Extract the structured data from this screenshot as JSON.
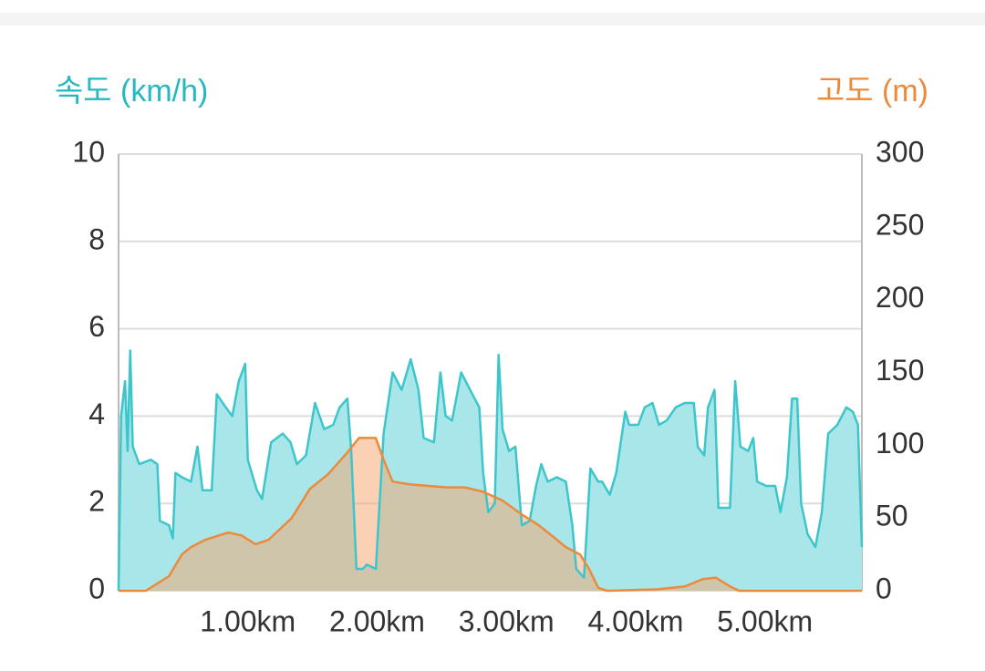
{
  "chart_data": {
    "type": "area",
    "ylabel": "속도 (km/h)",
    "y2label": "고도 (m)",
    "ylabel_color": "#26b8c0",
    "y2label_color": "#ec8a3c",
    "xlim": [
      0,
      5.75
    ],
    "xticks": [
      {
        "value": 1,
        "label": "1.00km"
      },
      {
        "value": 2,
        "label": "2.00km"
      },
      {
        "value": 3,
        "label": "3.00km"
      },
      {
        "value": 4,
        "label": "4.00km"
      },
      {
        "value": 5,
        "label": "5.00km"
      }
    ],
    "ylim": [
      0,
      10
    ],
    "yticks": [
      0,
      2,
      4,
      6,
      8,
      10
    ],
    "y2lim": [
      0,
      300
    ],
    "y2ticks": [
      0,
      50,
      100,
      150,
      200,
      250,
      300
    ],
    "grid": true,
    "series": [
      {
        "color": "#3cc6cc",
        "fill": "#a9e6ea",
        "axis": "y",
        "x": [
          0,
          0.02,
          0.05,
          0.07,
          0.09,
          0.11,
          0.16,
          0.25,
          0.3,
          0.32,
          0.39,
          0.42,
          0.44,
          0.49,
          0.56,
          0.61,
          0.65,
          0.72,
          0.76,
          0.83,
          0.88,
          0.93,
          0.98,
          1.0,
          1.07,
          1.11,
          1.18,
          1.27,
          1.33,
          1.38,
          1.45,
          1.52,
          1.59,
          1.66,
          1.71,
          1.77,
          1.8,
          1.84,
          1.89,
          1.92,
          1.99,
          2.05,
          2.12,
          2.19,
          2.26,
          2.32,
          2.36,
          2.44,
          2.49,
          2.53,
          2.58,
          2.65,
          2.72,
          2.79,
          2.82,
          2.86,
          2.91,
          2.94,
          2.97,
          3.02,
          3.07,
          3.12,
          3.18,
          3.23,
          3.27,
          3.32,
          3.39,
          3.46,
          3.51,
          3.54,
          3.6,
          3.65,
          3.71,
          3.74,
          3.8,
          3.85,
          3.92,
          3.95,
          4.02,
          4.07,
          4.13,
          4.18,
          4.24,
          4.31,
          4.38,
          4.45,
          4.48,
          4.53,
          4.56,
          4.61,
          4.64,
          4.7,
          4.73,
          4.77,
          4.81,
          4.87,
          4.91,
          4.94,
          5.01,
          5.08,
          5.12,
          5.17,
          5.21,
          5.25,
          5.28,
          5.33,
          5.39,
          5.44,
          5.49,
          5.56,
          5.63,
          5.68,
          5.72,
          5.75
        ],
        "values": [
          0,
          4.0,
          4.8,
          3.2,
          5.5,
          3.3,
          2.9,
          3.0,
          2.9,
          1.6,
          1.5,
          1.2,
          2.7,
          2.6,
          2.5,
          3.3,
          2.3,
          2.3,
          4.5,
          4.2,
          4.0,
          4.8,
          5.2,
          3.0,
          2.3,
          2.1,
          3.4,
          3.6,
          3.4,
          2.9,
          3.1,
          4.3,
          3.7,
          3.8,
          4.2,
          4.4,
          3.2,
          0.5,
          0.5,
          0.6,
          0.5,
          3.6,
          5.0,
          4.6,
          5.3,
          4.6,
          3.5,
          3.4,
          5.0,
          4.0,
          3.9,
          5.0,
          4.6,
          4.2,
          2.7,
          1.8,
          2.0,
          5.4,
          3.7,
          3.2,
          3.3,
          1.5,
          1.6,
          2.4,
          2.9,
          2.5,
          2.6,
          2.5,
          1.5,
          0.5,
          0.3,
          2.8,
          2.5,
          2.5,
          2.2,
          2.7,
          4.1,
          3.8,
          3.8,
          4.2,
          4.3,
          3.8,
          3.9,
          4.2,
          4.3,
          4.3,
          3.3,
          3.1,
          4.2,
          4.6,
          1.9,
          1.9,
          1.9,
          4.8,
          3.3,
          3.2,
          3.5,
          2.5,
          2.4,
          2.4,
          1.8,
          2.6,
          4.4,
          4.4,
          2.0,
          1.3,
          1.0,
          1.8,
          3.6,
          3.8,
          4.2,
          4.1,
          3.8,
          1.0
        ]
      },
      {
        "color": "#ec8a3c",
        "fill": "#f5a46a",
        "axis": "y2",
        "x": [
          0,
          0.21,
          0.39,
          0.49,
          0.56,
          0.67,
          0.85,
          0.95,
          1.06,
          1.16,
          1.34,
          1.48,
          1.62,
          1.77,
          1.86,
          1.99,
          2.05,
          2.12,
          2.26,
          2.54,
          2.68,
          2.82,
          2.97,
          3.11,
          3.25,
          3.35,
          3.46,
          3.57,
          3.64,
          3.71,
          3.78,
          4.17,
          4.38,
          4.52,
          4.62,
          4.73,
          4.8,
          5.75
        ],
        "values": [
          0,
          0,
          10,
          25,
          30,
          35,
          40,
          38,
          32,
          35,
          50,
          70,
          80,
          95,
          105,
          105,
          90,
          75,
          73,
          71,
          71,
          68,
          62,
          53,
          45,
          38,
          30,
          25,
          15,
          2,
          0,
          1,
          3,
          8,
          9,
          3,
          0,
          0
        ]
      }
    ]
  }
}
